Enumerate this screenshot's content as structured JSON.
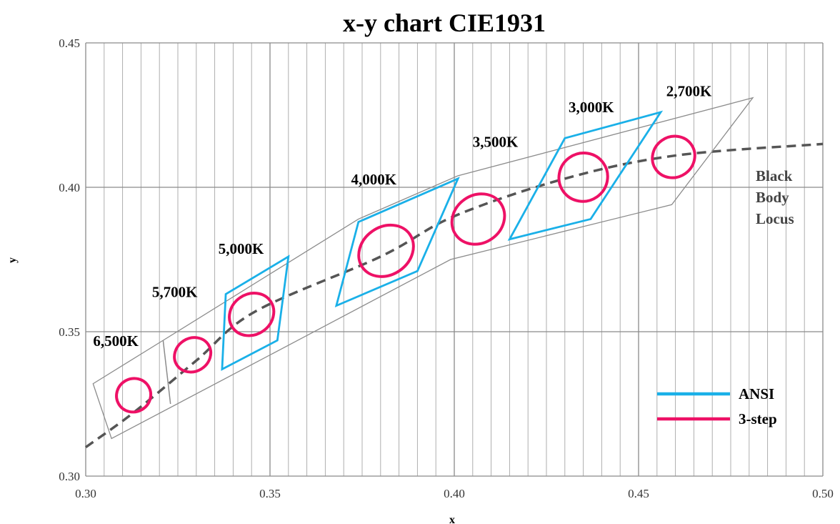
{
  "colors": {
    "ansi": "#1ab0e8",
    "three_step": "#ee1166",
    "locus": "#555555",
    "outline": "#8c8c8c",
    "grid": "#a6a6a6"
  },
  "chart_data": {
    "type": "scatter",
    "title": "x-y chart  CIE1931",
    "xlabel": "x",
    "ylabel": "y",
    "xlim": [
      0.3,
      0.5
    ],
    "ylim": [
      0.3,
      0.45
    ],
    "x_ticks": [
      "0.30",
      "0.35",
      "0.40",
      "0.45",
      "0.50"
    ],
    "y_ticks": [
      "0.30",
      "0.35",
      "0.40",
      "0.45"
    ],
    "grid": true,
    "legend_position": "bottom-right",
    "legend": [
      {
        "name": "ANSI",
        "color": "#1ab0e8"
      },
      {
        "name": "3-step",
        "color": "#ee1166"
      }
    ],
    "locus_label_lines": [
      "Black",
      "Body",
      "Locus"
    ],
    "black_body_locus": [
      [
        0.3,
        0.31
      ],
      [
        0.313,
        0.322
      ],
      [
        0.33,
        0.34
      ],
      [
        0.346,
        0.357
      ],
      [
        0.38,
        0.376
      ],
      [
        0.4,
        0.39
      ],
      [
        0.43,
        0.403
      ],
      [
        0.46,
        0.411
      ],
      [
        0.5,
        0.415
      ]
    ],
    "outer_outline": [
      [
        0.307,
        0.313
      ],
      [
        0.359,
        0.348
      ],
      [
        0.399,
        0.375
      ],
      [
        0.459,
        0.394
      ],
      [
        0.481,
        0.431
      ],
      [
        0.401,
        0.404
      ],
      [
        0.374,
        0.389
      ],
      [
        0.321,
        0.347
      ],
      [
        0.302,
        0.332
      ]
    ],
    "inner_divider": [
      [
        0.321,
        0.347
      ],
      [
        0.323,
        0.325
      ]
    ],
    "ansi_quads": [
      [
        [
          0.337,
          0.337
        ],
        [
          0.338,
          0.363
        ],
        [
          0.355,
          0.376
        ],
        [
          0.352,
          0.347
        ]
      ],
      [
        [
          0.368,
          0.359
        ],
        [
          0.374,
          0.388
        ],
        [
          0.401,
          0.403
        ],
        [
          0.39,
          0.371
        ]
      ],
      [
        [
          0.415,
          0.382
        ],
        [
          0.43,
          0.417
        ],
        [
          0.456,
          0.426
        ],
        [
          0.437,
          0.389
        ]
      ]
    ],
    "three_step_ellipses": [
      {
        "cx": 0.313,
        "cy": 0.328,
        "rx": 0.0045,
        "ry": 0.006,
        "angle": 60
      },
      {
        "cx": 0.329,
        "cy": 0.342,
        "rx": 0.0045,
        "ry": 0.0065,
        "angle": 58
      },
      {
        "cx": 0.345,
        "cy": 0.356,
        "rx": 0.0055,
        "ry": 0.008,
        "angle": 55
      },
      {
        "cx": 0.3815,
        "cy": 0.378,
        "rx": 0.0065,
        "ry": 0.01,
        "angle": 55
      },
      {
        "cx": 0.4065,
        "cy": 0.389,
        "rx": 0.0065,
        "ry": 0.0095,
        "angle": 55
      },
      {
        "cx": 0.435,
        "cy": 0.4035,
        "rx": 0.0065,
        "ry": 0.0085,
        "angle": 55
      },
      {
        "cx": 0.4595,
        "cy": 0.4105,
        "rx": 0.0055,
        "ry": 0.0075,
        "angle": 55
      }
    ],
    "bins": [
      {
        "label": "6,500K",
        "x": 0.302,
        "y": 0.345
      },
      {
        "label": "5,700K",
        "x": 0.318,
        "y": 0.362
      },
      {
        "label": "5,000K",
        "x": 0.336,
        "y": 0.377
      },
      {
        "label": "4,000K",
        "x": 0.372,
        "y": 0.401
      },
      {
        "label": "3,500K",
        "x": 0.405,
        "y": 0.414
      },
      {
        "label": "3,000K",
        "x": 0.431,
        "y": 0.426
      },
      {
        "label": "2,700K",
        "x": 0.4575,
        "y": 0.4315
      }
    ]
  }
}
